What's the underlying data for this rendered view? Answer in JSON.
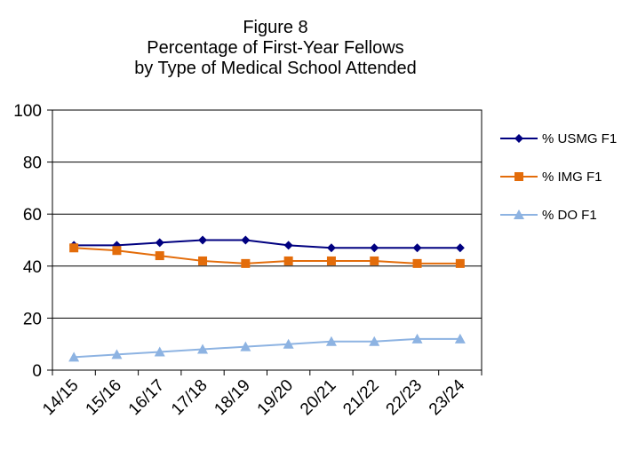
{
  "chart_data": {
    "type": "line",
    "title": [
      "Figure 8",
      "Percentage of First-Year Fellows",
      "by Type of Medical School Attended"
    ],
    "xlabel": "",
    "ylabel": "",
    "categories": [
      "14/15",
      "15/16",
      "16/17",
      "17/18",
      "18/19",
      "19/20",
      "20/21",
      "21/22",
      "22/23",
      "23/24"
    ],
    "ylim": [
      0,
      100
    ],
    "yticks": [
      0,
      20,
      40,
      60,
      80,
      100
    ],
    "grid": "horizontal",
    "legend_position": "right",
    "series": [
      {
        "name": "% USMG F1",
        "color": "#000080",
        "marker": "diamond",
        "values": [
          48,
          48,
          49,
          50,
          50,
          48,
          47,
          47,
          47,
          47
        ]
      },
      {
        "name": "% IMG F1",
        "color": "#E36C0A",
        "marker": "square",
        "values": [
          47,
          46,
          44,
          42,
          41,
          42,
          42,
          42,
          41,
          41
        ]
      },
      {
        "name": "% DO F1",
        "color": "#8DB3E2",
        "marker": "triangle",
        "values": [
          5,
          6,
          7,
          8,
          9,
          10,
          11,
          11,
          12,
          12
        ]
      }
    ]
  }
}
